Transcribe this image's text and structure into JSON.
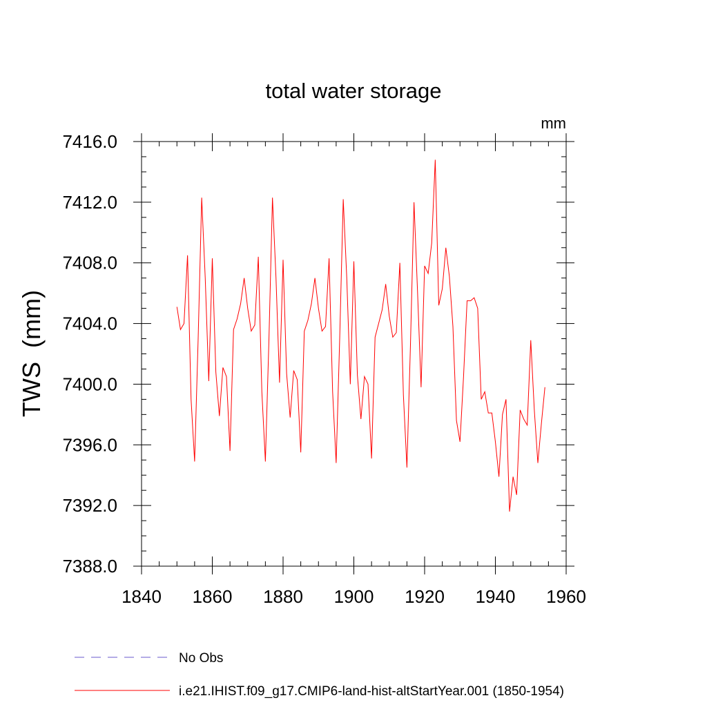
{
  "chart_data": {
    "type": "line",
    "title": "total water storage",
    "units": "mm",
    "ylabel": "TWS  (mm)",
    "xlabel": "",
    "xlim": [
      1840,
      1960
    ],
    "ylim": [
      7388.0,
      7416.0
    ],
    "x_ticks": [
      "1840",
      "1860",
      "1880",
      "1900",
      "1920",
      "1940",
      "1960"
    ],
    "y_ticks": [
      "7388.0",
      "7392.0",
      "7396.0",
      "7400.0",
      "7404.0",
      "7408.0",
      "7412.0",
      "7416.0"
    ],
    "grid": false,
    "legend_position": "bottom-left",
    "series": [
      {
        "name": "No Obs",
        "color": "#6a5acd",
        "dash": "dashed",
        "x": [],
        "y": []
      },
      {
        "name": "i.e21.IHIST.f09_g17.CMIP6-land-hist-altStartYear.001 (1850-1954)",
        "color": "#ff0000",
        "dash": "solid",
        "x": [
          1850,
          1851,
          1852,
          1853,
          1854,
          1855,
          1856,
          1857,
          1858,
          1859,
          1860,
          1861,
          1862,
          1863,
          1864,
          1865,
          1866,
          1867,
          1868,
          1869,
          1870,
          1871,
          1872,
          1873,
          1874,
          1875,
          1876,
          1877,
          1878,
          1879,
          1880,
          1881,
          1882,
          1883,
          1884,
          1885,
          1886,
          1887,
          1888,
          1889,
          1890,
          1891,
          1892,
          1893,
          1894,
          1895,
          1896,
          1897,
          1898,
          1899,
          1900,
          1901,
          1902,
          1903,
          1904,
          1905,
          1906,
          1907,
          1908,
          1909,
          1910,
          1911,
          1912,
          1913,
          1914,
          1915,
          1916,
          1917,
          1918,
          1919,
          1920,
          1921,
          1922,
          1923,
          1924,
          1925,
          1926,
          1927,
          1928,
          1929,
          1930,
          1931,
          1932,
          1933,
          1934,
          1935,
          1936,
          1937,
          1938,
          1939,
          1940,
          1941,
          1942,
          1943,
          1944,
          1945,
          1946,
          1947,
          1948,
          1949,
          1950,
          1951,
          1952,
          1953,
          1954
        ],
        "y": [
          7405.1,
          7403.6,
          7404.0,
          7408.5,
          7399.0,
          7394.9,
          7403.0,
          7412.3,
          7407.0,
          7400.2,
          7408.3,
          7400.8,
          7397.9,
          7401.1,
          7400.5,
          7395.6,
          7403.6,
          7404.3,
          7405.3,
          7407.0,
          7405.0,
          7403.5,
          7403.9,
          7408.4,
          7399.5,
          7394.9,
          7402.9,
          7412.3,
          7407.0,
          7400.1,
          7408.2,
          7400.7,
          7397.8,
          7400.9,
          7400.3,
          7395.5,
          7403.5,
          7404.2,
          7405.3,
          7407.0,
          7405.0,
          7403.5,
          7403.8,
          7408.3,
          7399.5,
          7394.8,
          7403.0,
          7412.2,
          7407.0,
          7400.0,
          7408.1,
          7400.6,
          7397.7,
          7400.5,
          7400.0,
          7395.1,
          7403.1,
          7404.0,
          7404.9,
          7406.6,
          7404.5,
          7403.1,
          7403.4,
          7408.0,
          7399.3,
          7394.5,
          7402.6,
          7412.0,
          7406.1,
          7399.8,
          7407.8,
          7407.3,
          7409.3,
          7414.8,
          7405.2,
          7406.3,
          7409.0,
          7407.1,
          7403.8,
          7397.6,
          7396.2,
          7400.5,
          7405.5,
          7405.5,
          7405.7,
          7405.0,
          7399.0,
          7399.5,
          7398.1,
          7398.1,
          7396.2,
          7393.9,
          7398.0,
          7399.0,
          7391.6,
          7393.9,
          7392.7,
          7398.3,
          7397.7,
          7397.3,
          7402.9,
          7398.3,
          7394.8,
          7397.4,
          7399.8
        ]
      }
    ]
  }
}
